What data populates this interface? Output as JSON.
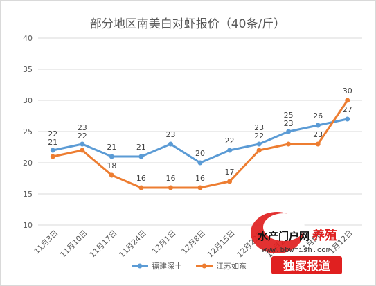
{
  "chart_data": {
    "type": "line",
    "title": "部分地区南美白对虾报价（40条/斤）",
    "categories": [
      "11月3日",
      "11月10日",
      "11月17日",
      "11月24日",
      "12月1日",
      "12月8日",
      "12月15日",
      "12月22日",
      "12月29日",
      "1月5日",
      "1月12日"
    ],
    "series": [
      {
        "name": "福建深土",
        "color": "#5b9bd5",
        "values": [
          22,
          23,
          21,
          21,
          23,
          20,
          22,
          23,
          25,
          26,
          27
        ]
      },
      {
        "name": "江苏如东",
        "color": "#ed7d31",
        "values": [
          21,
          22,
          18,
          16,
          16,
          16,
          17,
          22,
          23,
          23,
          30
        ]
      }
    ],
    "ylim": [
      10,
      40
    ],
    "yticks": [
      10,
      15,
      20,
      25,
      30,
      35,
      40
    ],
    "grid": true,
    "legend": "bottom"
  },
  "watermark": {
    "text": "水产门户网",
    "highlight": "养殖",
    "url": "www.bbwfish.com",
    "tagline": "独家报道"
  }
}
